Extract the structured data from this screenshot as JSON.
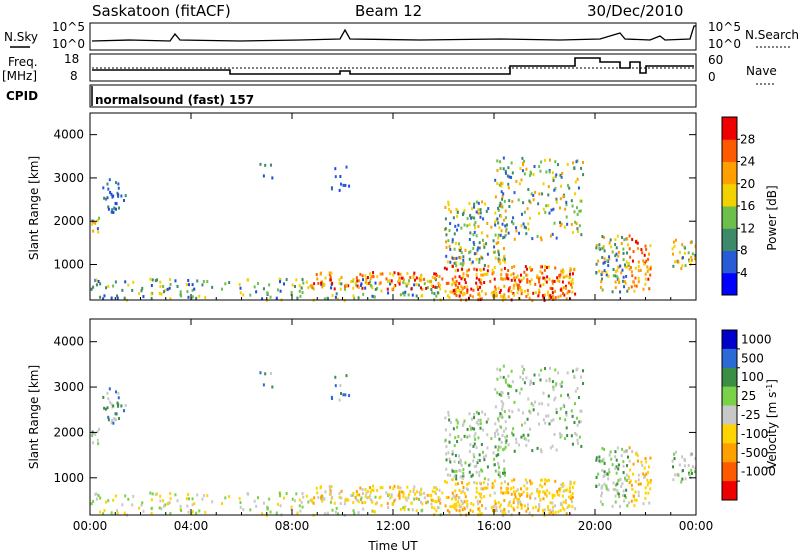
{
  "header": {
    "station": "Saskatoon (fitACF)",
    "beam": "Beam 12",
    "date": "30/Dec/2010"
  },
  "panels": {
    "nsky": {
      "left_label": "N.Sky",
      "right_label": "N.Search",
      "left_ticks": [
        "10^5",
        "10^0"
      ],
      "right_ticks": [
        "10^5",
        "10^0"
      ]
    },
    "freq": {
      "left_label_1": "Freq.",
      "left_label_2": "[MHz]",
      "right_label": "Nave",
      "left_ticks": [
        "18",
        "8"
      ],
      "right_ticks": [
        "60",
        "0"
      ]
    },
    "cpid": {
      "label": "CPID",
      "text": "normalsound (fast) 157"
    }
  },
  "chart_data": [
    {
      "type": "heatmap",
      "name": "power",
      "ylabel": "Slant Range [km]",
      "xlabel": "",
      "ylim": [
        180,
        4500
      ],
      "x_ticks": [
        "00:00",
        "04:00",
        "08:00",
        "12:00",
        "16:00",
        "20:00",
        "00:00"
      ],
      "x_tick_hours": [
        0,
        4,
        8,
        12,
        16,
        20,
        24
      ],
      "y_ticks": [
        1000,
        2000,
        3000,
        4000
      ],
      "colorbar": {
        "label": "Power [dB]",
        "ticks": [
          "4",
          "8",
          "12",
          "16",
          "20",
          "24",
          "28"
        ],
        "colors": [
          "#0000ff",
          "#2a5bd7",
          "#3d8a6b",
          "#6cbf4a",
          "#f2d200",
          "#ff9f00",
          "#ff5a00",
          "#ee0000"
        ]
      }
    },
    {
      "type": "heatmap",
      "name": "velocity",
      "ylabel": "Slant Range [km]",
      "xlabel": "Time UT",
      "ylim": [
        180,
        4500
      ],
      "x_ticks": [
        "00:00",
        "04:00",
        "08:00",
        "12:00",
        "16:00",
        "20:00",
        "00:00"
      ],
      "x_tick_hours": [
        0,
        4,
        8,
        12,
        16,
        20,
        24
      ],
      "y_ticks": [
        1000,
        2000,
        3000,
        4000
      ],
      "colorbar": {
        "label": "Velocity [m s",
        "label_sup": "-1",
        "label_close": "]",
        "ticks": [
          "1000",
          "500",
          "100",
          "25",
          "-25",
          "-100",
          "-500",
          "-1000"
        ],
        "colors": [
          "#0000c8",
          "#2a6ad7",
          "#3b8f45",
          "#7ad24a",
          "#c8c8c8",
          "#ffd400",
          "#ff9f00",
          "#ff5a00",
          "#ee0000"
        ]
      }
    }
  ]
}
